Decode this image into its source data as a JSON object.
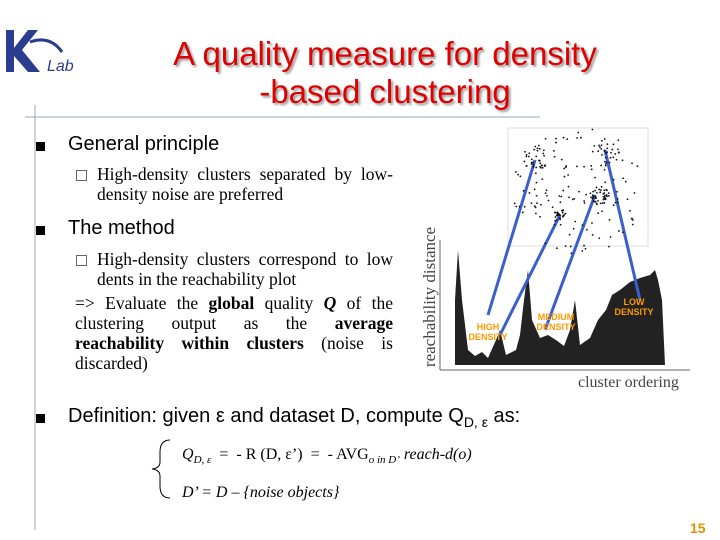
{
  "header": {
    "logo_text": "Lab",
    "title_lines": [
      "A quality measure for   density",
      "-based clustering"
    ]
  },
  "bullets": [
    {
      "text": "General principle",
      "sub": [
        "High-density clusters separated by low-density noise are preferred"
      ]
    },
    {
      "text": "The method",
      "sub": [
        "High-density clusters correspond to low dents in the reachability plot"
      ],
      "evaluate": [
        "=> Evaluate the ",
        "global",
        " quality ",
        "Q",
        " of the clustering output as the ",
        "average reachability within clusters",
        " (noise is discarded)"
      ]
    },
    {
      "text": [
        "Definition: given ε and dataset D, compute Q",
        "D, ε",
        " as:"
      ]
    }
  ],
  "formula": {
    "line1": [
      "Q",
      "D, ε",
      "  =  - R (D, ε’)  =  - AVG",
      "o in D’",
      " reach-d(o)"
    ],
    "line2": "D’ = D – {noise objects}"
  },
  "figure": {
    "y_axis_label": "reachability distance",
    "x_axis_label": "cluster ordering",
    "labels": [
      "HIGH DENSITY",
      "MEDIUM DENSITY",
      "LOW DENSITY"
    ]
  },
  "page_number": "15"
}
